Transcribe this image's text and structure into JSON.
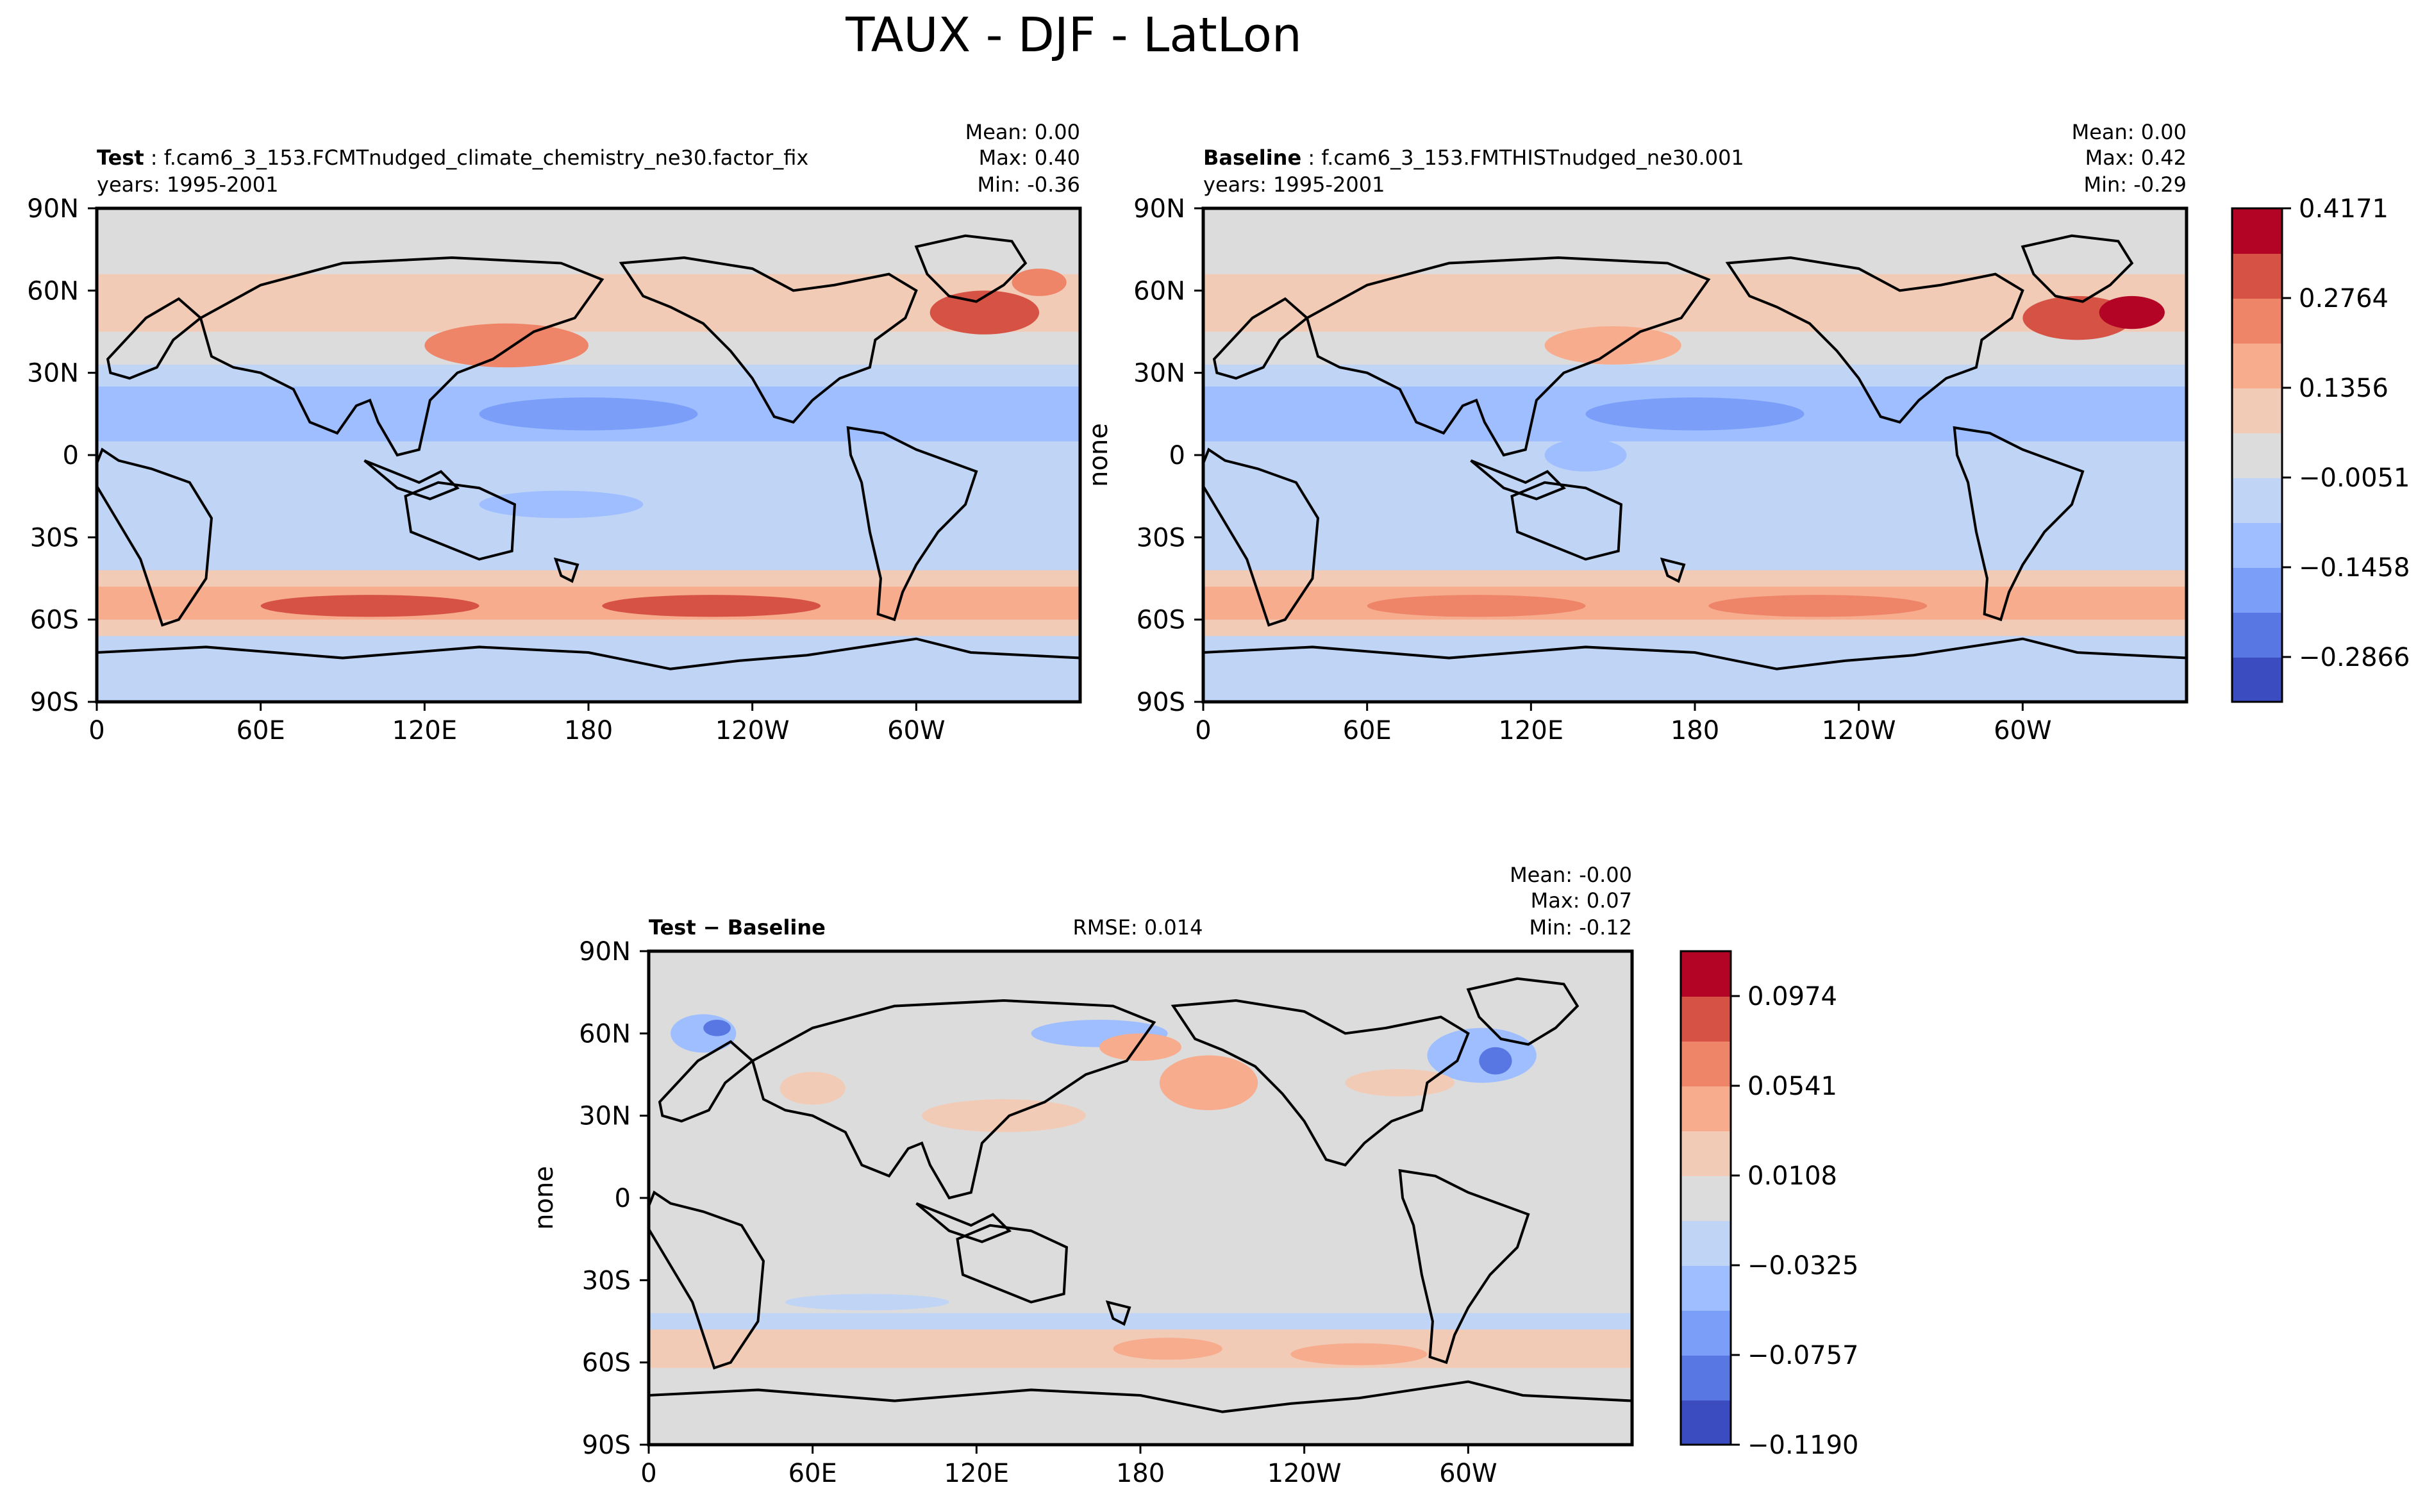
{
  "figure": {
    "title": "TAUX - DJF - LatLon"
  },
  "chart_data": [
    {
      "type": "heatmap",
      "panel": "test",
      "label_bold": "Test",
      "label_rest": ": f.cam6_3_153.FCMTnudged_climate_chemistry_ne30.factor_fix",
      "years": "years: 1995-2001",
      "stats": {
        "mean": "Mean:  0.00",
        "max": "Max:  0.40",
        "min": "Min: -0.36"
      },
      "ylabel": "",
      "xticks": [
        "0",
        "60E",
        "120E",
        "180",
        "120W",
        "60W"
      ],
      "yticks": [
        "90N",
        "60N",
        "30N",
        "0",
        "30S",
        "60S",
        "90S"
      ],
      "xlim": [
        0,
        360
      ],
      "ylim": [
        -90,
        90
      ],
      "bands": [
        {
          "lat": [
            90,
            72
          ],
          "value": 0.06
        },
        {
          "lat": [
            72,
            66
          ],
          "value": 0.06
        },
        {
          "lat": [
            66,
            45
          ],
          "value": 0.1
        },
        {
          "lat": [
            45,
            33
          ],
          "value": 0.06
        },
        {
          "lat": [
            33,
            25
          ],
          "value": -0.03
        },
        {
          "lat": [
            25,
            5
          ],
          "value": -0.1
        },
        {
          "lat": [
            5,
            -10
          ],
          "value": -0.03
        },
        {
          "lat": [
            -10,
            -30
          ],
          "value": -0.07
        },
        {
          "lat": [
            -30,
            -42
          ],
          "value": -0.02
        },
        {
          "lat": [
            -42,
            -48
          ],
          "value": 0.08
        },
        {
          "lat": [
            -48,
            -60
          ],
          "value": 0.2
        },
        {
          "lat": [
            -60,
            -66
          ],
          "value": 0.08
        },
        {
          "lat": [
            -66,
            -90
          ],
          "value": -0.03
        }
      ],
      "blobs": [
        {
          "lon": 150,
          "lat": 40,
          "rx": 30,
          "ry": 8,
          "value": 0.22
        },
        {
          "lon": 325,
          "lat": 52,
          "rx": 20,
          "ry": 8,
          "value": 0.3
        },
        {
          "lon": 345,
          "lat": 63,
          "rx": 10,
          "ry": 5,
          "value": 0.22
        },
        {
          "lon": 100,
          "lat": -55,
          "rx": 40,
          "ry": 4,
          "value": 0.28
        },
        {
          "lon": 225,
          "lat": -55,
          "rx": 40,
          "ry": 4,
          "value": 0.28
        },
        {
          "lon": 180,
          "lat": 15,
          "rx": 40,
          "ry": 6,
          "value": -0.17
        },
        {
          "lon": 170,
          "lat": -18,
          "rx": 30,
          "ry": 5,
          "value": -0.12
        }
      ],
      "colorbar": null
    },
    {
      "type": "heatmap",
      "panel": "baseline",
      "label_bold": "Baseline",
      "label_rest": ": f.cam6_3_153.FMTHISTnudged_ne30.001",
      "years": "years: 1995-2001",
      "stats": {
        "mean": "Mean:  0.00",
        "max": "Max:  0.42",
        "min": "Min: -0.29"
      },
      "ylabel": "none",
      "xticks": [
        "0",
        "60E",
        "120E",
        "180",
        "120W",
        "60W"
      ],
      "yticks": [
        "90N",
        "60N",
        "30N",
        "0",
        "30S",
        "60S",
        "90S"
      ],
      "xlim": [
        0,
        360
      ],
      "ylim": [
        -90,
        90
      ],
      "bands": [
        {
          "lat": [
            90,
            72
          ],
          "value": 0.06
        },
        {
          "lat": [
            72,
            66
          ],
          "value": 0.06
        },
        {
          "lat": [
            66,
            45
          ],
          "value": 0.1
        },
        {
          "lat": [
            45,
            33
          ],
          "value": 0.06
        },
        {
          "lat": [
            33,
            25
          ],
          "value": -0.03
        },
        {
          "lat": [
            25,
            5
          ],
          "value": -0.1
        },
        {
          "lat": [
            5,
            -10
          ],
          "value": -0.03
        },
        {
          "lat": [
            -10,
            -30
          ],
          "value": -0.07
        },
        {
          "lat": [
            -30,
            -42
          ],
          "value": -0.02
        },
        {
          "lat": [
            -42,
            -48
          ],
          "value": 0.08
        },
        {
          "lat": [
            -48,
            -60
          ],
          "value": 0.18
        },
        {
          "lat": [
            -60,
            -66
          ],
          "value": 0.08
        },
        {
          "lat": [
            -66,
            -90
          ],
          "value": -0.03
        }
      ],
      "blobs": [
        {
          "lon": 150,
          "lat": 40,
          "rx": 25,
          "ry": 7,
          "value": 0.2
        },
        {
          "lon": 320,
          "lat": 50,
          "rx": 20,
          "ry": 8,
          "value": 0.3
        },
        {
          "lon": 340,
          "lat": 52,
          "rx": 12,
          "ry": 6,
          "value": 0.36
        },
        {
          "lon": 100,
          "lat": -55,
          "rx": 40,
          "ry": 4,
          "value": 0.24
        },
        {
          "lon": 225,
          "lat": -55,
          "rx": 40,
          "ry": 4,
          "value": 0.24
        },
        {
          "lon": 180,
          "lat": 15,
          "rx": 40,
          "ry": 6,
          "value": -0.17
        },
        {
          "lon": 140,
          "lat": 0,
          "rx": 15,
          "ry": 6,
          "value": -0.12
        }
      ],
      "colorbar": {
        "ticks": [
          "0.4171",
          "0.2764",
          "0.1356",
          "−0.0051",
          "−0.1458",
          "−0.2866"
        ],
        "levels": [
          -0.3569,
          -0.31,
          -0.2631,
          -0.2162,
          -0.1692,
          -0.1223,
          -0.0754,
          -0.0285,
          0.0184,
          0.0653,
          0.1122,
          0.1591,
          0.206,
          0.2529,
          0.2998,
          0.3467,
          0.3936,
          0.4405
        ],
        "tick_values": [
          0.4171,
          0.2764,
          0.1356,
          -0.0051,
          -0.1458,
          -0.2866
        ]
      }
    },
    {
      "type": "heatmap",
      "panel": "difference",
      "label_bold": "Test − Baseline",
      "label_rest": "",
      "rmse": "RMSE: 0.014",
      "stats": {
        "mean": "Mean: -0.00",
        "max": "Max:  0.07",
        "min": "Min: -0.12"
      },
      "ylabel": "none",
      "xticks": [
        "0",
        "60E",
        "120E",
        "180",
        "120W",
        "60W"
      ],
      "yticks": [
        "90N",
        "60N",
        "30N",
        "0",
        "30S",
        "60S",
        "90S"
      ],
      "xlim": [
        0,
        360
      ],
      "ylim": [
        -90,
        90
      ],
      "bands": [
        {
          "lat": [
            90,
            60
          ],
          "value": 0.0
        },
        {
          "lat": [
            60,
            -42
          ],
          "value": 0.0
        },
        {
          "lat": [
            -42,
            -48
          ],
          "value": -0.02
        },
        {
          "lat": [
            -48,
            -62
          ],
          "value": 0.02
        },
        {
          "lat": [
            -62,
            -90
          ],
          "value": -0.01
        }
      ],
      "blobs": [
        {
          "lon": 20,
          "lat": 60,
          "rx": 12,
          "ry": 7,
          "value": -0.05
        },
        {
          "lon": 25,
          "lat": 62,
          "rx": 5,
          "ry": 3,
          "value": -0.08
        },
        {
          "lon": 165,
          "lat": 60,
          "rx": 25,
          "ry": 5,
          "value": -0.04
        },
        {
          "lon": 205,
          "lat": 42,
          "rx": 18,
          "ry": 10,
          "value": 0.04
        },
        {
          "lon": 180,
          "lat": 55,
          "rx": 15,
          "ry": 5,
          "value": 0.04
        },
        {
          "lon": 305,
          "lat": 52,
          "rx": 20,
          "ry": 10,
          "value": -0.05
        },
        {
          "lon": 310,
          "lat": 50,
          "rx": 6,
          "ry": 5,
          "value": -0.08
        },
        {
          "lon": 275,
          "lat": 42,
          "rx": 20,
          "ry": 5,
          "value": 0.03
        },
        {
          "lon": 130,
          "lat": 30,
          "rx": 30,
          "ry": 6,
          "value": 0.03
        },
        {
          "lon": 190,
          "lat": -55,
          "rx": 20,
          "ry": 4,
          "value": 0.05
        },
        {
          "lon": 260,
          "lat": -57,
          "rx": 25,
          "ry": 4,
          "value": 0.05
        },
        {
          "lon": 80,
          "lat": -38,
          "rx": 30,
          "ry": 3,
          "value": -0.03
        },
        {
          "lon": 60,
          "lat": 40,
          "rx": 12,
          "ry": 6,
          "value": 0.02
        }
      ],
      "colorbar": {
        "ticks": [
          "0.0974",
          "0.0541",
          "0.0108",
          "−0.0325",
          "−0.0757",
          "−0.1190"
        ],
        "levels": [
          -0.119,
          -0.0973,
          -0.0757,
          -0.0541,
          -0.0325,
          -0.0108,
          0.0108,
          0.0325,
          0.0541,
          0.0757,
          0.0974,
          0.119
        ],
        "tick_values": [
          0.0974,
          0.0541,
          0.0108,
          -0.0325,
          -0.0757,
          -0.119
        ]
      }
    }
  ]
}
